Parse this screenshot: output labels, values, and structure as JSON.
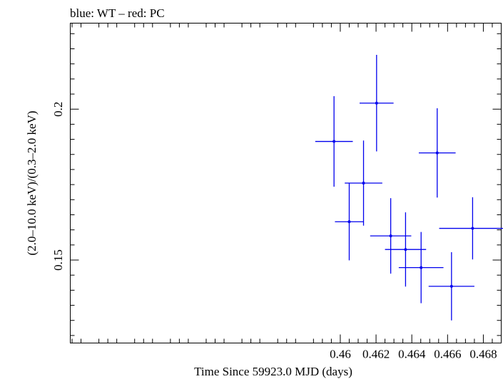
{
  "chart_data": {
    "type": "scatter",
    "title": "blue: WT – red: PC",
    "xlabel": "Time Since 59923.0 MJD (days)",
    "ylabel": "(2.0–10.0 keV)/(0.3–2.0 keV)",
    "xlim": [
      0.4449,
      0.469
    ],
    "ylim": [
      0.1225,
      0.2285
    ],
    "x_ticks": [
      {
        "value": 0.46,
        "label": "0.46"
      },
      {
        "value": 0.462,
        "label": "0.462"
      },
      {
        "value": 0.464,
        "label": "0.464"
      },
      {
        "value": 0.466,
        "label": "0.466"
      },
      {
        "value": 0.468,
        "label": "0.468"
      }
    ],
    "y_ticks": [
      {
        "value": 0.15,
        "label": "0.15"
      },
      {
        "value": 0.2,
        "label": "0.2"
      }
    ],
    "grid": false,
    "series": [
      {
        "color": "#0000ee",
        "points": [
          {
            "x": 0.45965,
            "y": 0.1893,
            "xerr": 0.00105,
            "yerr": 0.015
          },
          {
            "x": 0.4605,
            "y": 0.1627,
            "xerr": 0.0008,
            "yerr": 0.0128
          },
          {
            "x": 0.4613,
            "y": 0.1755,
            "xerr": 0.00105,
            "yerr": 0.0141
          },
          {
            "x": 0.46203,
            "y": 0.202,
            "xerr": 0.00095,
            "yerr": 0.016
          },
          {
            "x": 0.46282,
            "y": 0.158,
            "xerr": 0.00115,
            "yerr": 0.0125
          },
          {
            "x": 0.46365,
            "y": 0.1535,
            "xerr": 0.00115,
            "yerr": 0.0123
          },
          {
            "x": 0.46452,
            "y": 0.1475,
            "xerr": 0.00125,
            "yerr": 0.0118
          },
          {
            "x": 0.46542,
            "y": 0.1855,
            "xerr": 0.00103,
            "yerr": 0.0148
          },
          {
            "x": 0.46622,
            "y": 0.1413,
            "xerr": 0.00128,
            "yerr": 0.0113
          },
          {
            "x": 0.4674,
            "y": 0.1605,
            "xerr": 0.00187,
            "yerr": 0.0103
          }
        ]
      }
    ]
  }
}
